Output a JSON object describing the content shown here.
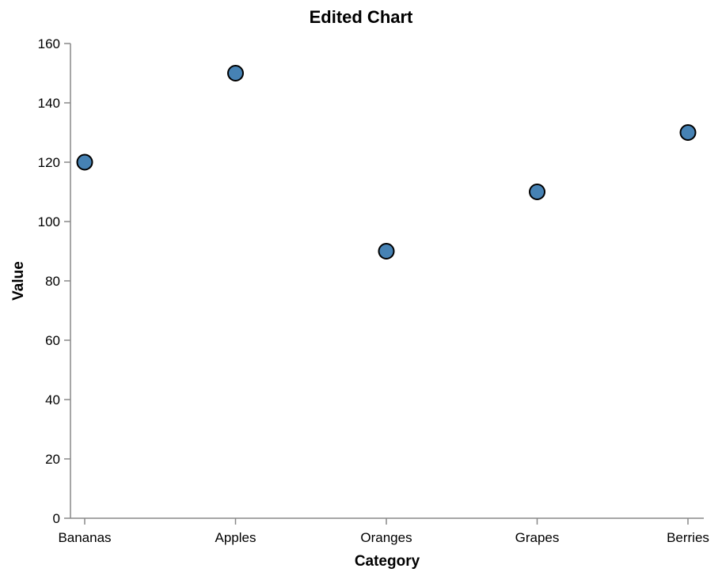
{
  "chart_data": {
    "type": "scatter",
    "title": "Edited Chart",
    "xlabel": "Category",
    "ylabel": "Value",
    "categories": [
      "Bananas",
      "Apples",
      "Oranges",
      "Grapes",
      "Berries"
    ],
    "values": [
      120,
      150,
      90,
      110,
      130
    ],
    "ylim": [
      0,
      160
    ],
    "yticks": [
      0,
      20,
      40,
      60,
      80,
      100,
      120,
      140,
      160
    ],
    "grid": false,
    "point_color": "#4682b4",
    "point_stroke": "#000000",
    "axis_color": "#888888"
  }
}
